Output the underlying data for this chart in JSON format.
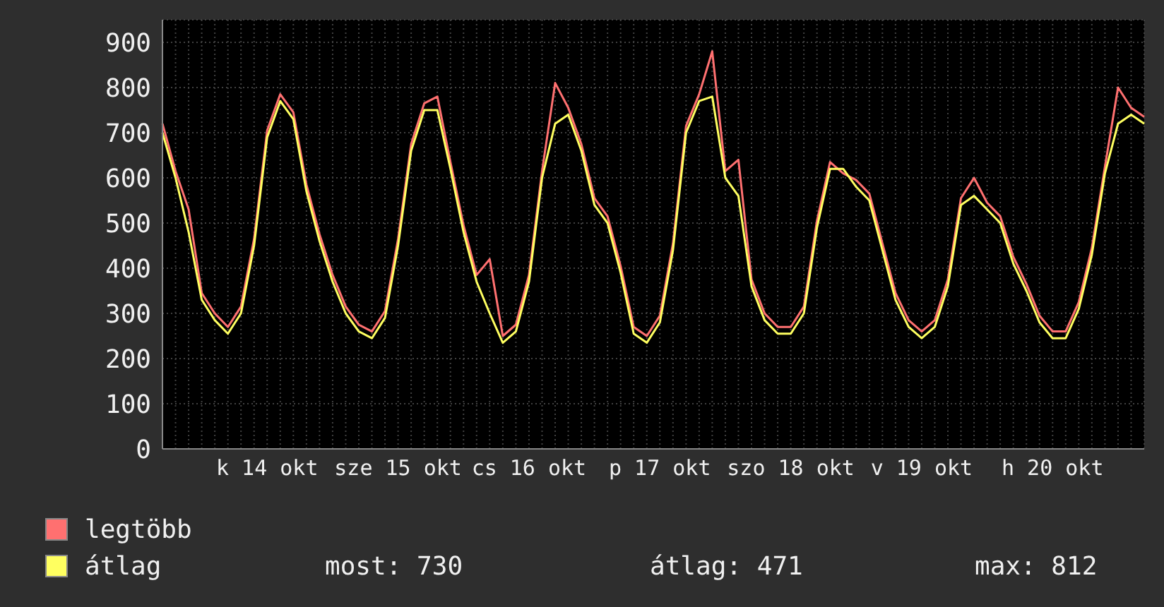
{
  "chart_data": {
    "type": "line",
    "categories": [
      null,
      null,
      null,
      null,
      null,
      null,
      null,
      null,
      "k 14 okt",
      null,
      null,
      null,
      null,
      null,
      null,
      null,
      null,
      null,
      "sze 15 okt",
      null,
      null,
      null,
      null,
      null,
      null,
      null,
      null,
      null,
      "cs 16 okt",
      null,
      null,
      null,
      null,
      null,
      null,
      null,
      null,
      null,
      "p 17 okt",
      null,
      null,
      null,
      null,
      null,
      null,
      null,
      null,
      null,
      "szo 18 okt",
      null,
      null,
      null,
      null,
      null,
      null,
      null,
      null,
      null,
      "v 19 okt",
      null,
      null,
      null,
      null,
      null,
      null,
      null,
      null,
      null,
      "h 20 okt",
      null,
      null,
      null,
      null,
      null,
      null,
      null
    ],
    "series": [
      {
        "name": "legtöbb",
        "color": "#ff7070",
        "values": [
          720,
          615,
          530,
          345,
          300,
          270,
          315,
          465,
          705,
          785,
          745,
          585,
          475,
          385,
          315,
          275,
          260,
          305,
          465,
          675,
          765,
          780,
          635,
          495,
          385,
          420,
          250,
          275,
          385,
          615,
          810,
          755,
          675,
          555,
          515,
          405,
          270,
          250,
          295,
          455,
          715,
          785,
          880,
          615,
          640,
          375,
          300,
          270,
          270,
          315,
          505,
          635,
          610,
          595,
          565,
          455,
          345,
          285,
          260,
          285,
          375,
          555,
          600,
          545,
          515,
          425,
          365,
          295,
          260,
          260,
          325,
          445,
          625,
          800,
          755,
          735
        ]
      },
      {
        "name": "átlag",
        "color": "#ffff60",
        "values": [
          700,
          600,
          480,
          330,
          285,
          255,
          300,
          450,
          690,
          770,
          730,
          570,
          460,
          370,
          300,
          260,
          245,
          290,
          450,
          660,
          750,
          750,
          620,
          480,
          370,
          300,
          235,
          260,
          370,
          600,
          720,
          740,
          660,
          540,
          500,
          390,
          255,
          235,
          280,
          440,
          700,
          770,
          780,
          600,
          560,
          360,
          285,
          255,
          255,
          300,
          490,
          620,
          620,
          580,
          550,
          440,
          330,
          270,
          245,
          270,
          360,
          540,
          560,
          530,
          500,
          410,
          350,
          280,
          245,
          245,
          310,
          430,
          610,
          720,
          740,
          720
        ]
      }
    ],
    "ylim": [
      0,
      950
    ],
    "yticks": [
      0,
      100,
      200,
      300,
      400,
      500,
      600,
      700,
      800,
      900
    ],
    "grid": true,
    "legend": "bottom",
    "marker": "none",
    "line_style": "solid",
    "annotations": [
      "most: 730",
      "átlag: 471",
      "max: 812"
    ]
  }
}
